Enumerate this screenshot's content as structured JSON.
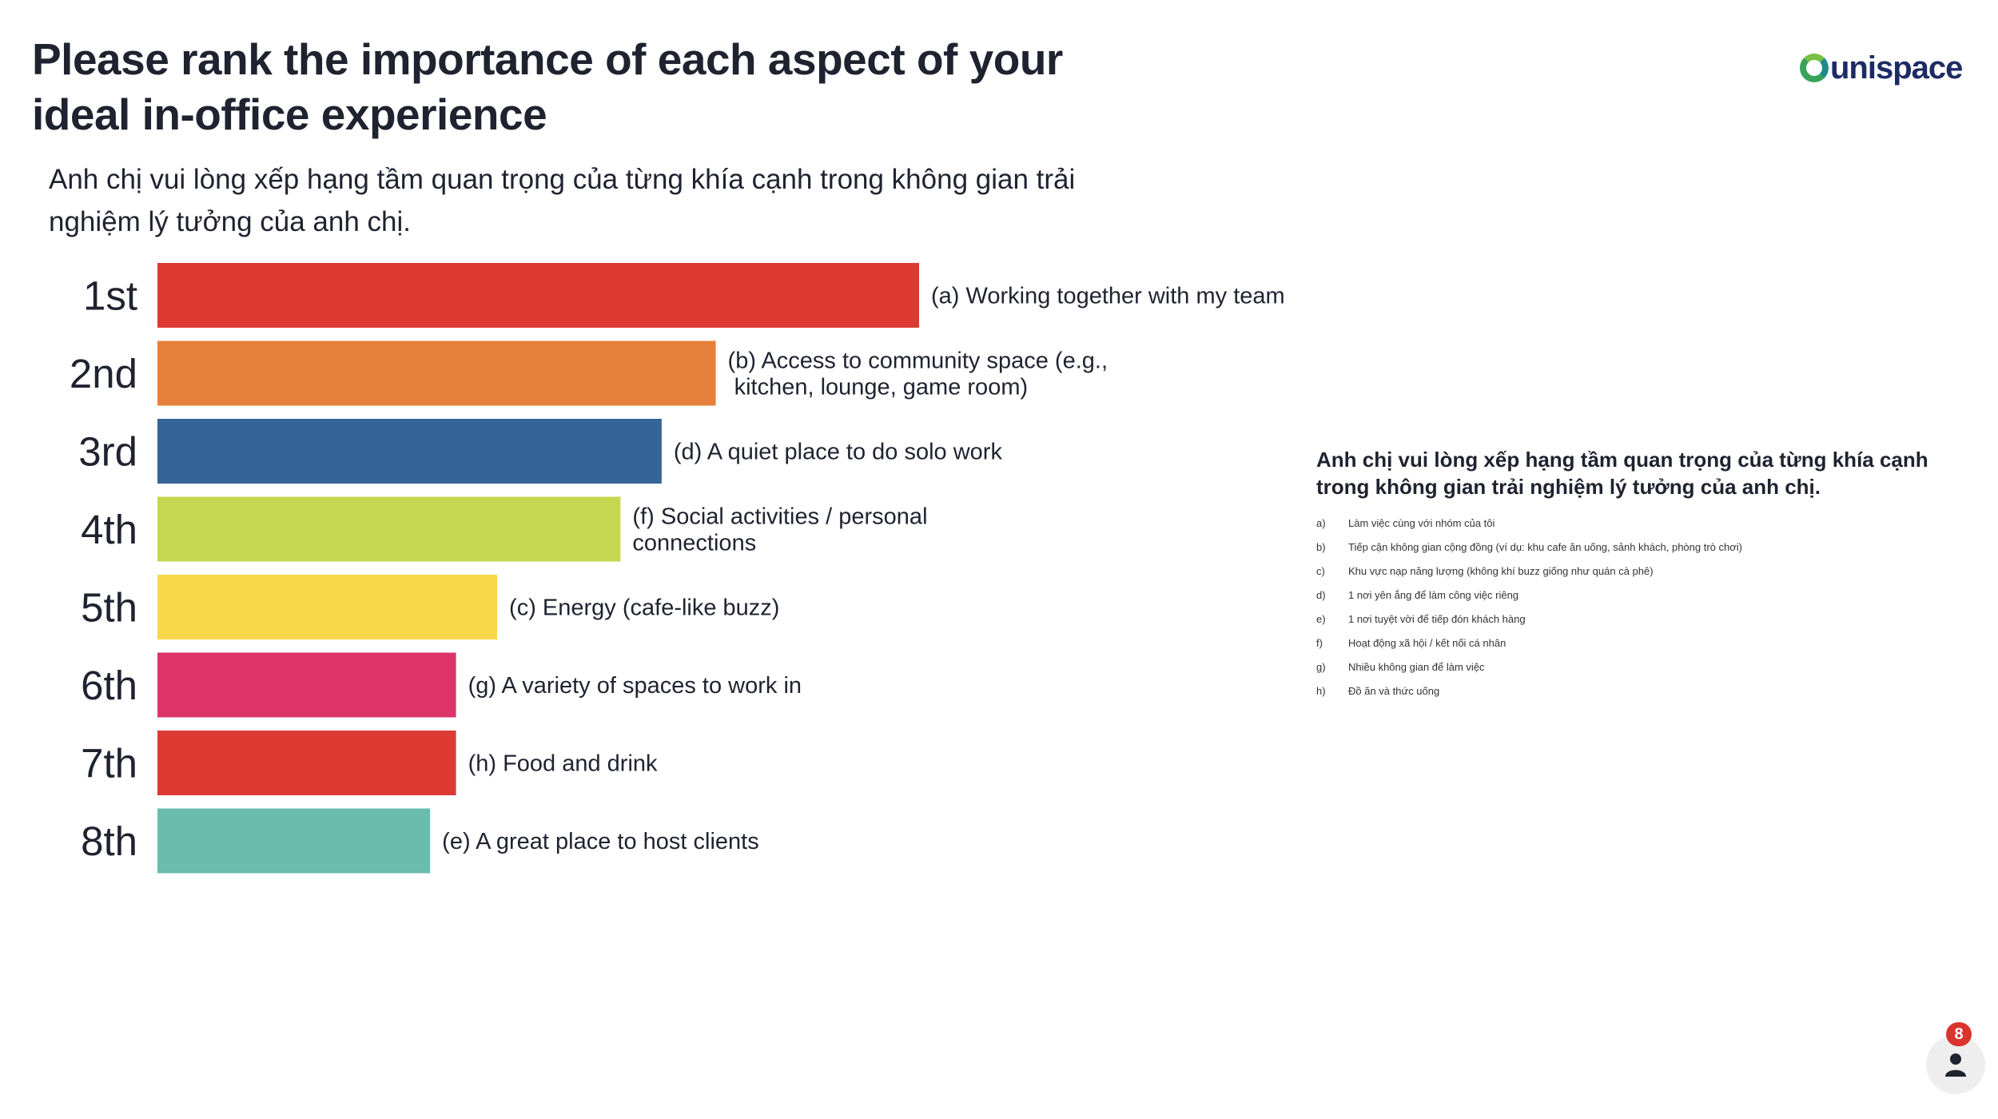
{
  "header": {
    "title": "Please rank the importance of each aspect of your ideal in-office experience",
    "subtitle": "Anh chị vui lòng xếp hạng tầm quan trọng của từng khía cạnh trong không gian trải nghiệm lý tưởng của anh chị.",
    "logo_text": "unispace"
  },
  "chart_data": {
    "type": "bar",
    "orientation": "horizontal",
    "categories": [
      "1st",
      "2nd",
      "3rd",
      "4th",
      "5th",
      "6th",
      "7th",
      "8th"
    ],
    "labels": [
      [
        "(a) Working together with my team"
      ],
      [
        "(b) Access to community space (e.g.,",
        " kitchen, lounge, game room)"
      ],
      [
        "(d) A quiet place to do solo work"
      ],
      [
        "(f) Social activities / personal",
        "connections"
      ],
      [
        "(c) Energy (cafe-like buzz)"
      ],
      [
        "(g) A variety of spaces to work in"
      ],
      [
        "(h) Food and drink"
      ],
      [
        "(e) A great place to host clients"
      ]
    ],
    "values": [
      100,
      73.3,
      66.2,
      60.8,
      44.6,
      39.2,
      39.2,
      35.8
    ],
    "colors": [
      "#dc3a33",
      "#e6803a",
      "#356497",
      "#c4d751",
      "#f8d74a",
      "#dc3469",
      "#dc3a33",
      "#6abcad"
    ],
    "xlim": [
      0,
      100
    ],
    "grid": false,
    "legend": "none"
  },
  "legend_panel": {
    "title": "Anh chị vui lòng xếp hạng tầm quan trọng của từng khía cạnh trong không gian trải nghiệm lý tưởng của anh chị.",
    "items": [
      {
        "key": "a)",
        "text": "Làm việc cùng với nhóm của tôi"
      },
      {
        "key": "b)",
        "text": "Tiếp cận không gian cộng đồng (ví dụ: khu cafe ăn uống, sảnh khách, phòng trò chơi)"
      },
      {
        "key": "c)",
        "text": "Khu vực nạp năng lượng (không khí buzz giống như quán cà phê)"
      },
      {
        "key": "d)",
        "text": "1 nơi yên ắng để làm công việc riêng"
      },
      {
        "key": "e)",
        "text": "1 nơi tuyệt vời để tiếp đón khách hàng"
      },
      {
        "key": "f)",
        "text": "Hoạt động xã hội / kết nối cá nhân"
      },
      {
        "key": "g)",
        "text": "Nhiều không gian để làm việc"
      },
      {
        "key": "h)",
        "text": "Đồ ăn và thức uống"
      }
    ]
  },
  "notification": {
    "count": "8",
    "icon": "person-icon"
  }
}
